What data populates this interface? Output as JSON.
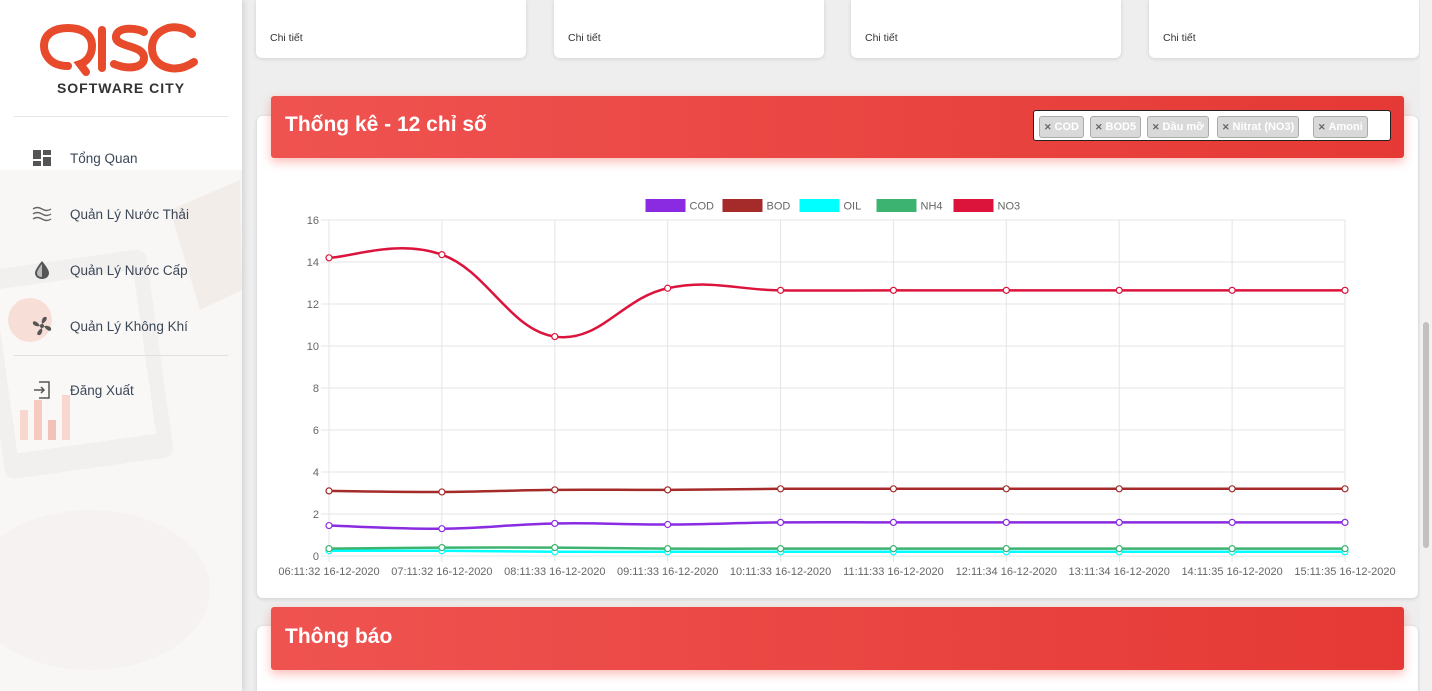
{
  "sidebar": {
    "logo": {
      "mark": "QISC",
      "subtitle": "SOFTWARE CITY"
    },
    "items": [
      {
        "label": "Tổng Quan",
        "icon": "dashboard-icon"
      },
      {
        "label": "Quản Lý Nước Thải",
        "icon": "waves-icon"
      },
      {
        "label": "Quản Lý Nước Cấp",
        "icon": "water-drop-icon"
      },
      {
        "label": "Quản Lý Không Khí",
        "icon": "fan-icon"
      },
      {
        "label": "Đăng Xuất",
        "icon": "logout-icon"
      }
    ]
  },
  "stat_cards": [
    {
      "detail_label": "Chi tiết"
    },
    {
      "detail_label": "Chi tiết"
    },
    {
      "detail_label": "Chi tiết"
    },
    {
      "detail_label": "Chi tiết"
    }
  ],
  "stats_section": {
    "title": "Thống kê - 12 chỉ số",
    "selected_tags": [
      "COD",
      "BOD5",
      "Dầu mỡ",
      "Nitrat (NO3)",
      "Amoni"
    ]
  },
  "notification_section": {
    "title": "Thông báo"
  },
  "colors": {
    "header_red": "#e53935",
    "accent": "#ef5350"
  },
  "chart_data": {
    "type": "line",
    "categories": [
      "06:11:32 16-12-2020",
      "07:11:32 16-12-2020",
      "08:11:33 16-12-2020",
      "09:11:33 16-12-2020",
      "10:11:33 16-12-2020",
      "11:11:33 16-12-2020",
      "12:11:34 16-12-2020",
      "13:11:34 16-12-2020",
      "14:11:35 16-12-2020",
      "15:11:35 16-12-2020"
    ],
    "series": [
      {
        "name": "COD",
        "color": "#8a2be2",
        "values": [
          1.45,
          1.3,
          1.55,
          1.5,
          1.6,
          1.6,
          1.6,
          1.6,
          1.6,
          1.6
        ]
      },
      {
        "name": "BOD",
        "color": "#a52a2a",
        "values": [
          3.1,
          3.05,
          3.15,
          3.15,
          3.2,
          3.2,
          3.2,
          3.2,
          3.2,
          3.2
        ]
      },
      {
        "name": "OIL",
        "color": "#00ffff",
        "values": [
          0.25,
          0.25,
          0.2,
          0.2,
          0.2,
          0.2,
          0.2,
          0.2,
          0.2,
          0.2
        ]
      },
      {
        "name": "NH4",
        "color": "#3cb371",
        "values": [
          0.35,
          0.4,
          0.4,
          0.35,
          0.35,
          0.35,
          0.35,
          0.35,
          0.35,
          0.35
        ]
      },
      {
        "name": "NO3",
        "color": "#dc143c",
        "values": [
          14.2,
          14.35,
          10.45,
          12.75,
          12.65,
          12.65,
          12.65,
          12.65,
          12.65,
          12.65
        ]
      }
    ],
    "ylim": [
      0,
      16
    ],
    "yticks": [
      0,
      2,
      4,
      6,
      8,
      10,
      12,
      14,
      16
    ],
    "grid": true,
    "legend": "top"
  }
}
